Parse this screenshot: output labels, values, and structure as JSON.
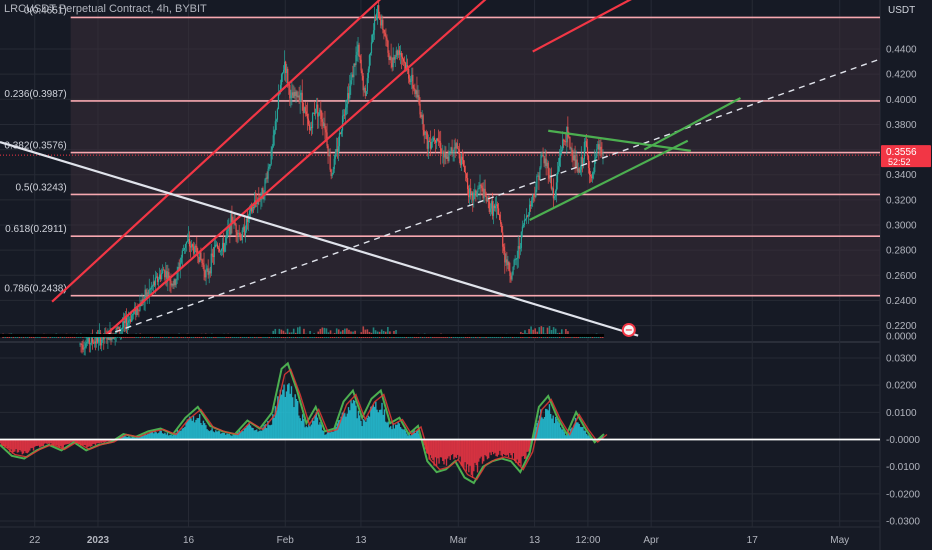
{
  "header": {
    "symbol_title": "LRCUSDT Perpetual Contract, 4h, BYBIT"
  },
  "chart_data": [
    {
      "type": "candlestick",
      "panel": "price",
      "currency_label": "USDT",
      "y_ticks": [
        "0.4400",
        "0.4200",
        "0.4000",
        "0.3800",
        "0.3600",
        "0.3400",
        "0.3200",
        "0.3000",
        "0.2800",
        "0.2600",
        "0.2400",
        "0.2200"
      ],
      "ylim": [
        0.2117,
        0.479
      ],
      "scale": "linear",
      "x_ticks": [
        {
          "label": "22",
          "t": 21.7
        },
        {
          "label": "2023",
          "t": 31.9
        },
        {
          "label": "16",
          "t": 46.5
        },
        {
          "label": "Feb",
          "t": 62.1
        },
        {
          "label": "13",
          "t": 74.3
        },
        {
          "label": "Mar",
          "t": 90.0
        },
        {
          "label": "13",
          "t": 102.3
        },
        {
          "label": "12:00",
          "t": 110.9
        },
        {
          "label": "Apr",
          "t": 121.1
        },
        {
          "label": "17",
          "t": 137.4
        },
        {
          "label": "May",
          "t": 151.5
        }
      ],
      "x_range_days": [
        16.1,
        158.0
      ],
      "last_price": {
        "value": "0.3556",
        "countdown": "52:52",
        "y": 0.3556
      },
      "price_path": [
        [
          29.0,
          0.205
        ],
        [
          33.0,
          0.21
        ],
        [
          36.0,
          0.219
        ],
        [
          40.0,
          0.246
        ],
        [
          42.5,
          0.264
        ],
        [
          44.2,
          0.252
        ],
        [
          46.0,
          0.287
        ],
        [
          48.0,
          0.278
        ],
        [
          49.5,
          0.26
        ],
        [
          51.0,
          0.285
        ],
        [
          52.0,
          0.28
        ],
        [
          53.5,
          0.305
        ],
        [
          55.0,
          0.29
        ],
        [
          56.5,
          0.31
        ],
        [
          57.5,
          0.32
        ],
        [
          58.5,
          0.325
        ],
        [
          60.0,
          0.36
        ],
        [
          61.0,
          0.4
        ],
        [
          62.0,
          0.43
        ],
        [
          63.0,
          0.4
        ],
        [
          64.5,
          0.405
        ],
        [
          66.0,
          0.375
        ],
        [
          67.0,
          0.395
        ],
        [
          68.5,
          0.38
        ],
        [
          69.5,
          0.34
        ],
        [
          70.5,
          0.36
        ],
        [
          71.5,
          0.39
        ],
        [
          72.5,
          0.41
        ],
        [
          73.8,
          0.44
        ],
        [
          75.0,
          0.4
        ],
        [
          76.0,
          0.45
        ],
        [
          77.0,
          0.47
        ],
        [
          78.0,
          0.455
        ],
        [
          79.0,
          0.43
        ],
        [
          80.5,
          0.44
        ],
        [
          82.0,
          0.42
        ],
        [
          83.5,
          0.4
        ],
        [
          85.0,
          0.365
        ],
        [
          86.5,
          0.372
        ],
        [
          88.0,
          0.35
        ],
        [
          89.5,
          0.365
        ],
        [
          91.0,
          0.345
        ],
        [
          92.0,
          0.32
        ],
        [
          93.5,
          0.33
        ],
        [
          95.0,
          0.315
        ],
        [
          96.5,
          0.31
        ],
        [
          97.5,
          0.275
        ],
        [
          98.5,
          0.26
        ],
        [
          99.5,
          0.275
        ],
        [
          100.5,
          0.3
        ],
        [
          101.5,
          0.315
        ],
        [
          102.5,
          0.33
        ],
        [
          103.5,
          0.355
        ],
        [
          104.5,
          0.345
        ],
        [
          105.5,
          0.32
        ],
        [
          106.5,
          0.36
        ],
        [
          107.5,
          0.372
        ],
        [
          108.5,
          0.355
        ],
        [
          109.5,
          0.34
        ],
        [
          110.5,
          0.365
        ],
        [
          111.5,
          0.333
        ],
        [
          112.5,
          0.362
        ],
        [
          113.5,
          0.355
        ]
      ],
      "fib_levels": [
        {
          "label": "0(0.4651)",
          "value": 0.4651
        },
        {
          "label": "0.236(0.3987)",
          "value": 0.3987
        },
        {
          "label": "0.382(0.3576)",
          "value": 0.3576
        },
        {
          "label": "0.5(0.3243)",
          "value": 0.3243
        },
        {
          "label": "0.618(0.2911)",
          "value": 0.2911
        },
        {
          "label": "0.786(0.2438)",
          "value": 0.2438
        }
      ],
      "trend_lines": [
        {
          "kind": "channel-lower",
          "color": "#f23645",
          "style": "solid",
          "from": [
            33.0,
            0.212
          ],
          "to": [
            94.5,
            0.48
          ]
        },
        {
          "kind": "channel-upper",
          "color": "#f23645",
          "style": "solid",
          "from": [
            24.5,
            0.239
          ],
          "to": [
            77.5,
            0.48
          ]
        },
        {
          "kind": "channel-top",
          "color": "#f23645",
          "style": "solid",
          "from": [
            102.0,
            0.438
          ],
          "to": [
            118.0,
            0.48
          ]
        },
        {
          "kind": "long-term",
          "color": "#e0e3eb",
          "style": "solid",
          "from": [
            16.1,
            0.366
          ],
          "to": [
            119.0,
            0.212
          ]
        },
        {
          "kind": "support-extension",
          "color": "#e0e3eb",
          "style": "dashed",
          "from": [
            33.0,
            0.212
          ],
          "to": [
            158.0,
            0.432
          ]
        },
        {
          "kind": "triangle-top",
          "color": "#4caf50",
          "style": "solid",
          "from": [
            104.5,
            0.375
          ],
          "to": [
            127.5,
            0.359
          ]
        },
        {
          "kind": "triangle-bottom",
          "color": "#4caf50",
          "style": "solid",
          "from": [
            101.5,
            0.304
          ],
          "to": [
            127.0,
            0.367
          ]
        },
        {
          "kind": "target-arrow",
          "color": "#4caf50",
          "style": "solid",
          "from": [
            120.0,
            0.36
          ],
          "to": [
            135.5,
            0.401
          ]
        }
      ]
    },
    {
      "type": "area",
      "panel": "oscillator",
      "y_ticks": [
        "0.0300",
        "0.0200",
        "0.0100",
        "-0.0000",
        "-0.0100",
        "-0.0200",
        "-0.0300"
      ],
      "ylim": [
        -0.0322,
        0.0322
      ],
      "zero_value": "0.0000",
      "oscillator_path": [
        [
          16.1,
          -0.002
        ],
        [
          18.0,
          -0.006
        ],
        [
          20.0,
          -0.007
        ],
        [
          22.0,
          -0.004
        ],
        [
          24.0,
          -0.002
        ],
        [
          26.0,
          -0.004
        ],
        [
          28.0,
          -0.001
        ],
        [
          30.0,
          -0.004
        ],
        [
          32.0,
          -0.002
        ],
        [
          34.0,
          -0.001
        ],
        [
          36.0,
          0.002
        ],
        [
          38.0,
          0.001
        ],
        [
          40.0,
          0.003
        ],
        [
          42.0,
          0.004
        ],
        [
          44.0,
          0.002
        ],
        [
          46.0,
          0.008
        ],
        [
          48.0,
          0.012
        ],
        [
          50.0,
          0.005
        ],
        [
          52.0,
          0.003
        ],
        [
          54.0,
          0.002
        ],
        [
          56.0,
          0.007
        ],
        [
          58.0,
          0.004
        ],
        [
          60.0,
          0.01
        ],
        [
          61.5,
          0.026
        ],
        [
          62.5,
          0.028
        ],
        [
          64.0,
          0.018
        ],
        [
          65.5,
          0.006
        ],
        [
          67.0,
          0.012
        ],
        [
          68.5,
          0.003
        ],
        [
          70.0,
          0.004
        ],
        [
          71.5,
          0.014
        ],
        [
          73.0,
          0.018
        ],
        [
          74.5,
          0.008
        ],
        [
          76.0,
          0.015
        ],
        [
          77.5,
          0.018
        ],
        [
          79.0,
          0.006
        ],
        [
          80.5,
          0.008
        ],
        [
          82.0,
          0.002
        ],
        [
          83.5,
          0.005
        ],
        [
          85.0,
          -0.008
        ],
        [
          86.5,
          -0.012
        ],
        [
          88.0,
          -0.011
        ],
        [
          89.5,
          -0.008
        ],
        [
          91.0,
          -0.014
        ],
        [
          92.5,
          -0.016
        ],
        [
          94.0,
          -0.01
        ],
        [
          95.5,
          -0.008
        ],
        [
          97.0,
          -0.007
        ],
        [
          98.5,
          -0.008
        ],
        [
          100.0,
          -0.012
        ],
        [
          101.5,
          -0.005
        ],
        [
          103.0,
          0.012
        ],
        [
          104.5,
          0.016
        ],
        [
          106.0,
          0.008
        ],
        [
          107.5,
          0.002
        ],
        [
          109.0,
          0.01
        ],
        [
          110.5,
          0.004
        ],
        [
          112.0,
          -0.001
        ],
        [
          113.5,
          0.002
        ]
      ]
    }
  ]
}
